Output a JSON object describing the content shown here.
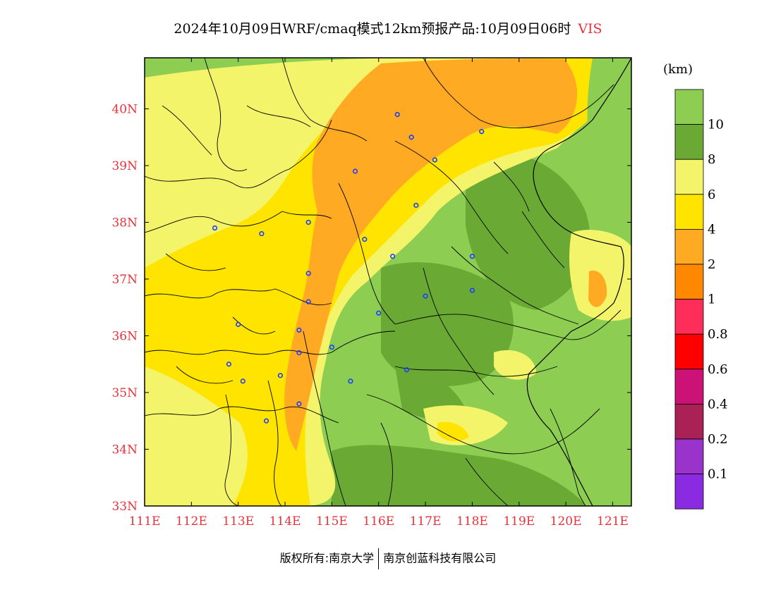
{
  "header": {
    "title": "2024年10月09日WRF/cmaq模式12km预报产品:10月09日06时",
    "variable": "VIS"
  },
  "colors": {
    "axis_text": "#e8323c",
    "pink": "#ff2d5a",
    "red": "#ff0000",
    "magenta": "#cc1177",
    "maroon": "#aa2255",
    "purple": "#9933cc",
    "violet": "#8a2be2",
    "orange_dark": "#ff8800",
    "orange": "#ffaa22",
    "yellow": "#ffe400",
    "yellow_light": "#f4f46a",
    "green_dark": "#6aaa34",
    "green": "#8ccd52",
    "boundary": "#000000",
    "city_marker": "#1a3cff"
  },
  "axes": {
    "x_ticks": [
      "111E",
      "112E",
      "113E",
      "114E",
      "115E",
      "116E",
      "117E",
      "118E",
      "119E",
      "120E",
      "121E"
    ],
    "y_ticks": [
      "40N",
      "39N",
      "38N",
      "37N",
      "36N",
      "35N",
      "34N",
      "33N"
    ],
    "lon_range": [
      111,
      121.4
    ],
    "lat_range": [
      33,
      40.9
    ]
  },
  "legend": {
    "unit": "(km)",
    "bins": [
      {
        "color": "#8ccd52",
        "label": "10"
      },
      {
        "color": "#6aaa34",
        "label": "8"
      },
      {
        "color": "#f4f46a",
        "label": "6"
      },
      {
        "color": "#ffe400",
        "label": "4"
      },
      {
        "color": "#ffaa22",
        "label": "2"
      },
      {
        "color": "#ff8800",
        "label": "1"
      },
      {
        "color": "#ff2d5a",
        "label": "0.8"
      },
      {
        "color": "#ff0000",
        "label": "0.6"
      },
      {
        "color": "#cc1177",
        "label": "0.4"
      },
      {
        "color": "#aa2255",
        "label": "0.2"
      },
      {
        "color": "#9933cc",
        "label": "0.1"
      },
      {
        "color": "#8a2be2",
        "label": ""
      }
    ]
  },
  "cities": [
    {
      "lon": 116.4,
      "lat": 39.9
    },
    {
      "lon": 117.2,
      "lat": 39.1
    },
    {
      "lon": 116.7,
      "lat": 39.5
    },
    {
      "lon": 118.2,
      "lat": 39.6
    },
    {
      "lon": 115.5,
      "lat": 38.9
    },
    {
      "lon": 116.8,
      "lat": 38.3
    },
    {
      "lon": 114.5,
      "lat": 38.0
    },
    {
      "lon": 115.7,
      "lat": 37.7
    },
    {
      "lon": 116.3,
      "lat": 37.4
    },
    {
      "lon": 114.5,
      "lat": 37.1
    },
    {
      "lon": 114.5,
      "lat": 36.6
    },
    {
      "lon": 114.3,
      "lat": 36.1
    },
    {
      "lon": 114.3,
      "lat": 35.7
    },
    {
      "lon": 115.0,
      "lat": 35.8
    },
    {
      "lon": 113.9,
      "lat": 35.3
    },
    {
      "lon": 115.4,
      "lat": 35.2
    },
    {
      "lon": 113.1,
      "lat": 35.2
    },
    {
      "lon": 112.8,
      "lat": 35.5
    },
    {
      "lon": 113.0,
      "lat": 36.2
    },
    {
      "lon": 112.5,
      "lat": 37.9
    },
    {
      "lon": 113.5,
      "lat": 37.8
    },
    {
      "lon": 114.3,
      "lat": 34.8
    },
    {
      "lon": 113.6,
      "lat": 34.5
    },
    {
      "lon": 116.0,
      "lat": 36.4
    },
    {
      "lon": 117.0,
      "lat": 36.7
    },
    {
      "lon": 118.0,
      "lat": 36.8
    },
    {
      "lon": 118.0,
      "lat": 37.4
    },
    {
      "lon": 116.6,
      "lat": 35.4
    }
  ],
  "footer": {
    "left": "版权所有:南京大学",
    "right": "南京创蓝科技有限公司"
  }
}
